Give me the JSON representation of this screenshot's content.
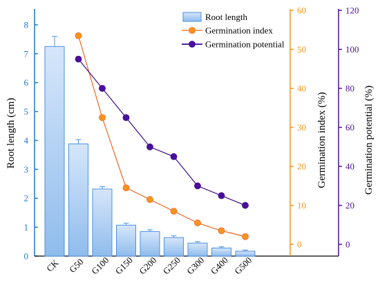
{
  "chart_data": {
    "type": "bar+line",
    "categories": [
      "CK",
      "G50",
      "G100",
      "G150",
      "G200",
      "G250",
      "G300",
      "G400",
      "G500"
    ],
    "bar_series": {
      "name": "Root length",
      "values": [
        7.25,
        3.88,
        2.32,
        1.07,
        0.85,
        0.64,
        0.45,
        0.28,
        0.17
      ],
      "errors": [
        0.35,
        0.15,
        0.08,
        0.07,
        0.06,
        0.06,
        0.05,
        0.04,
        0.04
      ],
      "axis": "left"
    },
    "line_series": [
      {
        "name": "Germination index",
        "categories": [
          "G50",
          "G100",
          "G150",
          "G200",
          "G250",
          "G300",
          "G400",
          "G500"
        ],
        "values": [
          53.5,
          32.5,
          14.5,
          11.5,
          8.5,
          5.5,
          3.5,
          2.0
        ],
        "axis": "right1",
        "color": "#f26522",
        "marker_color": "#f7941d"
      },
      {
        "name": "Germination potential",
        "categories": [
          "G50",
          "G100",
          "G150",
          "G200",
          "G250",
          "G300",
          "G400",
          "G500"
        ],
        "values": [
          95,
          80,
          65,
          50,
          45,
          30,
          25,
          20
        ],
        "axis": "right2",
        "color": "#3b0a8c",
        "marker_color": "#4b0f9e"
      }
    ],
    "axes": {
      "left": {
        "label": "Root length (cm)",
        "ylim": [
          0,
          8.5
        ],
        "ticks": [
          "0",
          "1",
          "2",
          "3",
          "4",
          "5",
          "6",
          "7",
          "8"
        ],
        "color": "#1f78d1"
      },
      "right1": {
        "label": "Germination index (%)",
        "ylim": [
          -3,
          60
        ],
        "ticks": [
          "0",
          "10",
          "20",
          "30",
          "40",
          "50",
          "60"
        ],
        "color": "#f7941d"
      },
      "right2": {
        "label": "Germination potential (%)",
        "ylim": [
          -6,
          120
        ],
        "ticks": [
          "0",
          "20",
          "40",
          "60",
          "80",
          "100",
          "120"
        ],
        "color": "#4b0f9e"
      }
    },
    "legend": {
      "placement": "top-right",
      "items": [
        "Root length",
        "Germination index",
        "Germination potential"
      ]
    },
    "grid": false,
    "colors": {
      "bar_top": "#d6e6fb",
      "bar_bottom": "#8fbcec",
      "bar_edge": "#4a90e2"
    }
  }
}
